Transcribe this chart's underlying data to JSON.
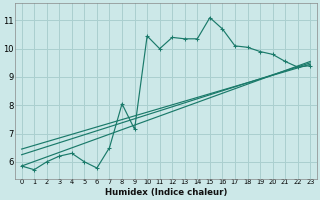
{
  "xlabel": "Humidex (Indice chaleur)",
  "ylabel": "",
  "bg_color": "#cce8e8",
  "grid_color": "#aacfcf",
  "line_color": "#1a7a6a",
  "xlim": [
    -0.5,
    23.5
  ],
  "ylim": [
    5.4,
    11.6
  ],
  "xticks": [
    0,
    1,
    2,
    3,
    4,
    5,
    6,
    7,
    8,
    9,
    10,
    11,
    12,
    13,
    14,
    15,
    16,
    17,
    18,
    19,
    20,
    21,
    22,
    23
  ],
  "yticks": [
    6,
    7,
    8,
    9,
    10,
    11
  ],
  "main_line_x": [
    0,
    1,
    2,
    3,
    4,
    5,
    6,
    7,
    8,
    9,
    10,
    11,
    12,
    13,
    14,
    15,
    16,
    17,
    18,
    19,
    20,
    21,
    22,
    23
  ],
  "main_line_y": [
    5.85,
    5.72,
    6.0,
    6.2,
    6.3,
    6.0,
    5.78,
    6.5,
    8.05,
    7.15,
    10.45,
    10.0,
    10.4,
    10.35,
    10.35,
    11.1,
    10.7,
    10.1,
    10.05,
    9.9,
    9.8,
    9.55,
    9.35,
    9.4
  ],
  "reg_lines": [
    [
      [
        0,
        6.45
      ],
      [
        23,
        9.45
      ]
    ],
    [
      [
        0,
        6.25
      ],
      [
        23,
        9.5
      ]
    ],
    [
      [
        0,
        5.85
      ],
      [
        23,
        9.55
      ]
    ]
  ]
}
